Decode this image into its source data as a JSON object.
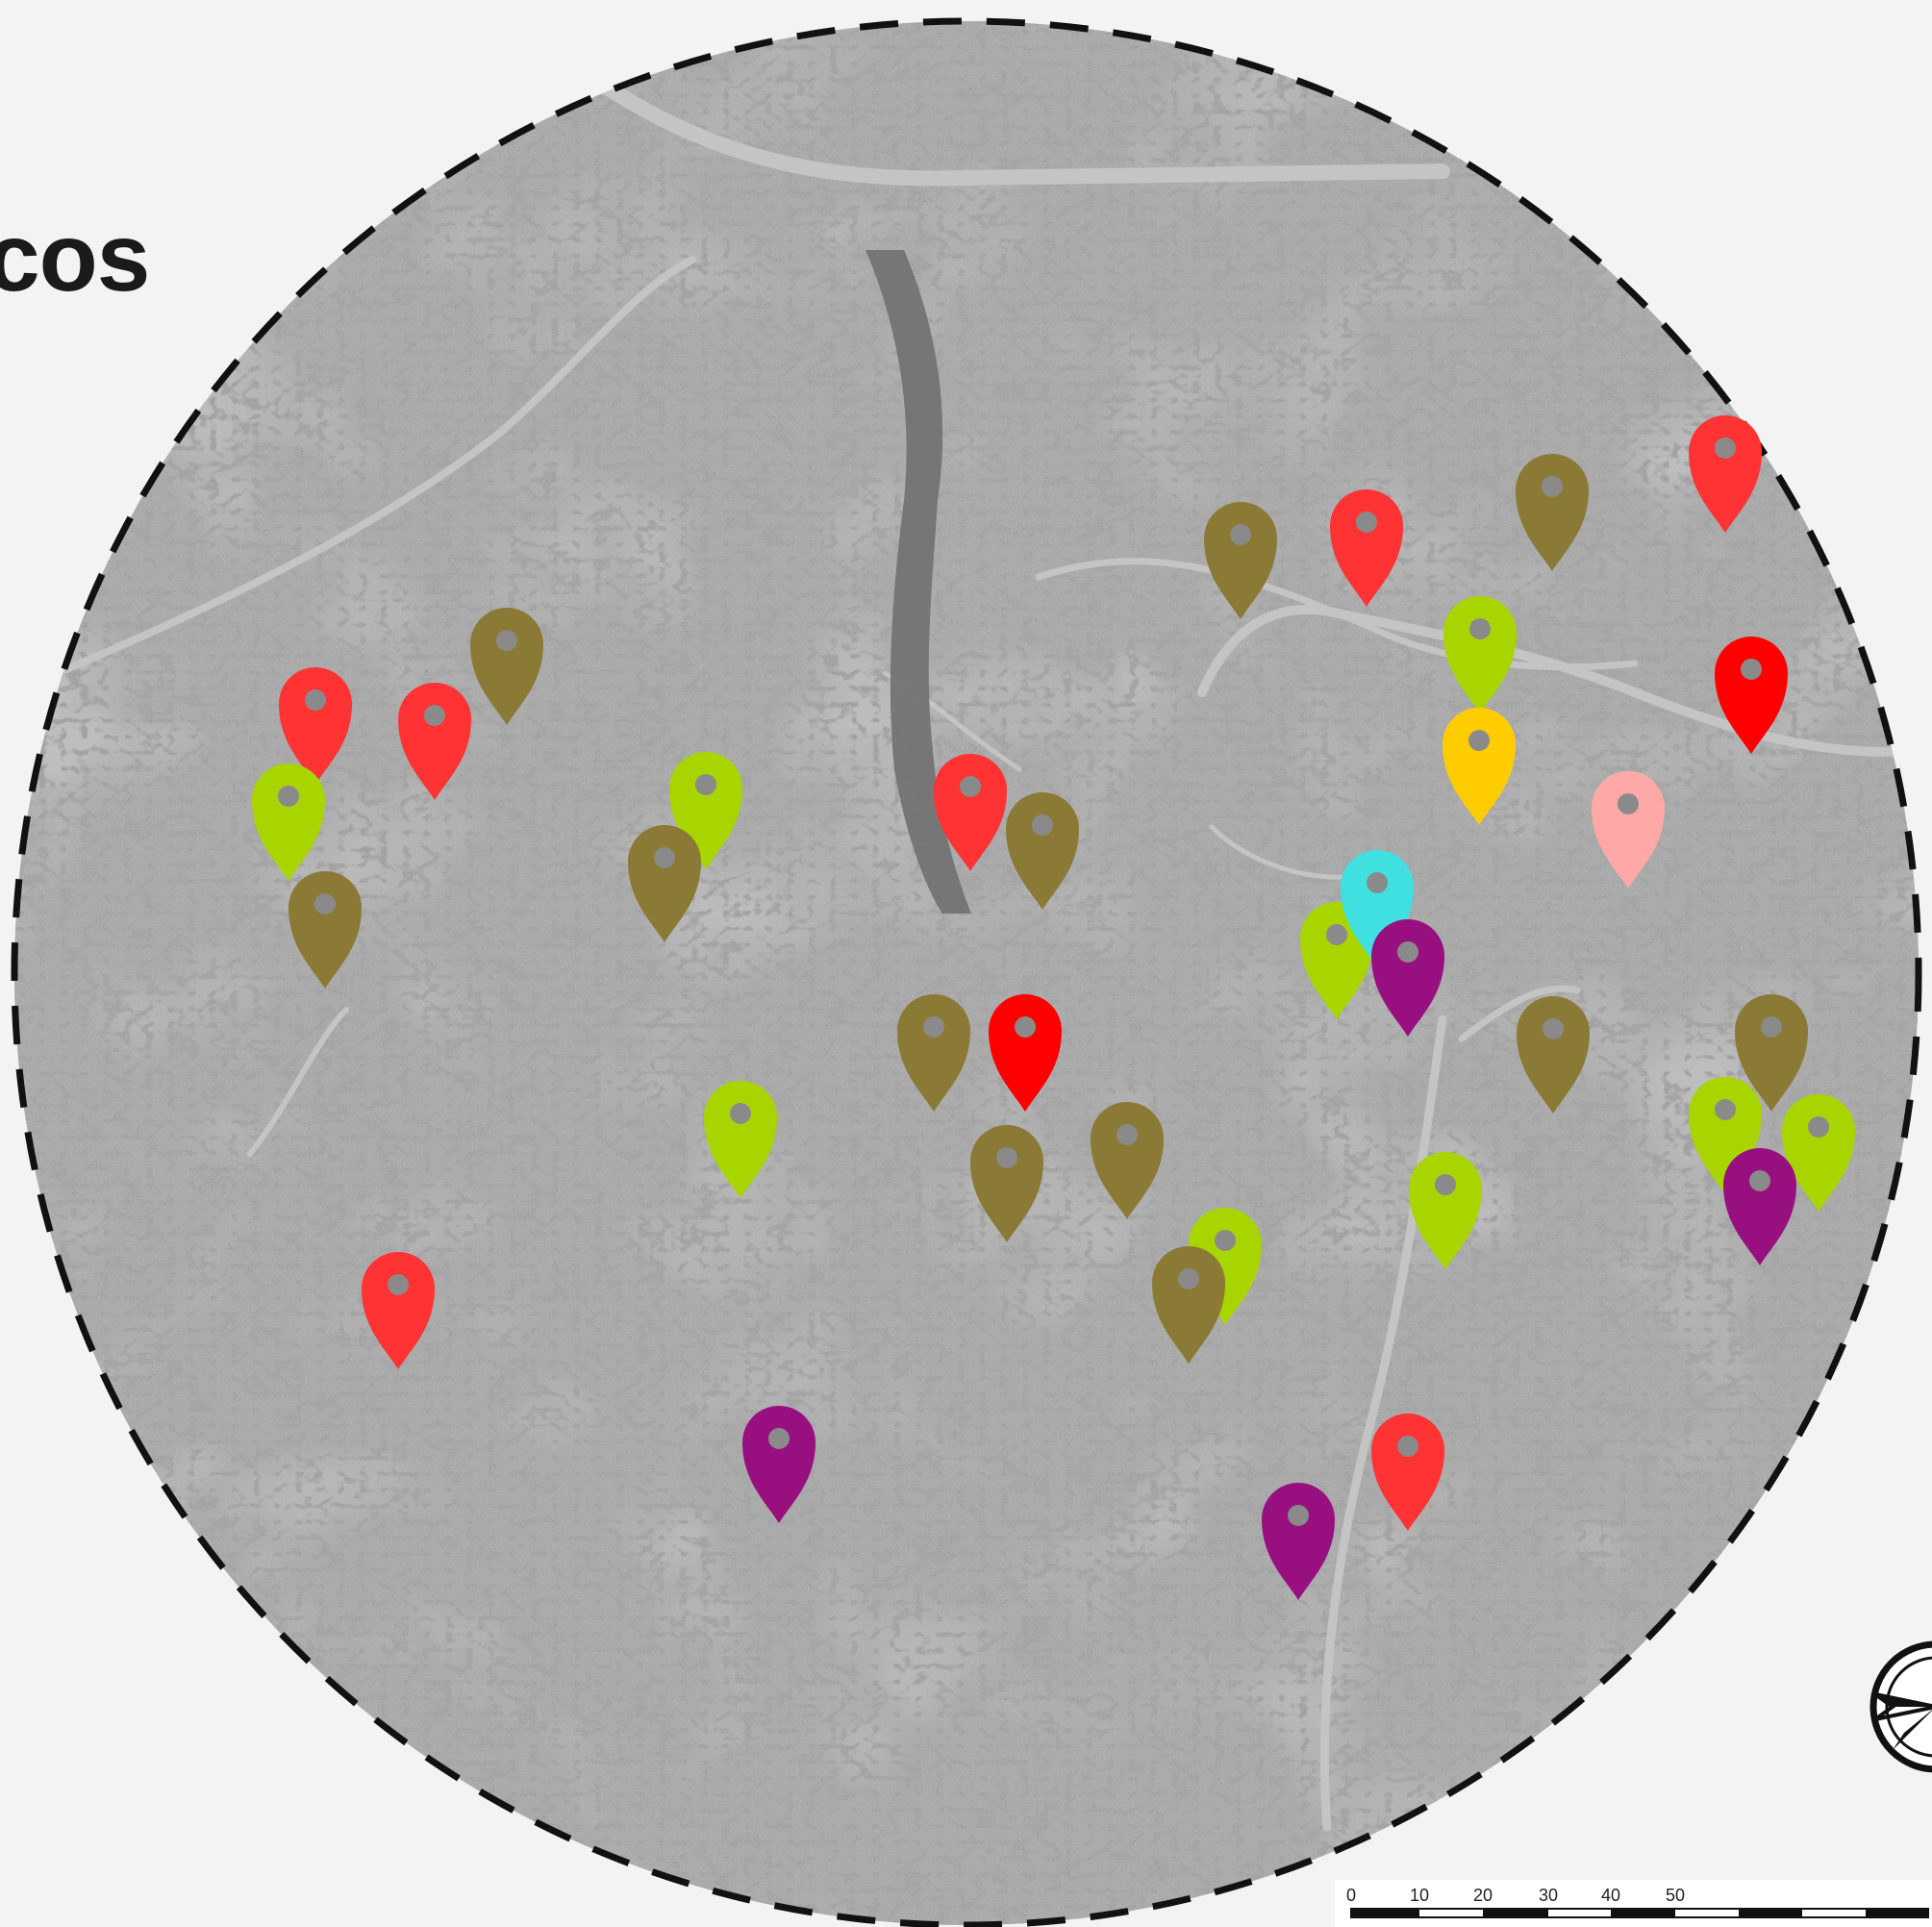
{
  "title": "cos",
  "colors": {
    "background": "#f3f3f3",
    "map_base": "#8e8e8e",
    "circle_border": "#111111"
  },
  "markers": [
    {
      "category": "red",
      "color": "#ff3333",
      "icon": "map-pin-icon"
    },
    {
      "category": "red",
      "color": "#ff3333",
      "icon": "map-pin-icon"
    },
    {
      "category": "olive",
      "color": "#8a7a35",
      "icon": "map-pin-icon"
    },
    {
      "category": "red",
      "color": "#ff3333",
      "icon": "map-pin-icon"
    },
    {
      "category": "lime",
      "color": "#a8d400",
      "icon": "map-pin-icon"
    },
    {
      "category": "olive",
      "color": "#8a7a35",
      "icon": "map-pin-icon"
    },
    {
      "category": "lime",
      "color": "#a8d400",
      "icon": "map-pin-icon"
    },
    {
      "category": "olive",
      "color": "#8a7a35",
      "icon": "map-pin-icon"
    },
    {
      "category": "red",
      "color": "#ff3333",
      "icon": "map-pin-icon"
    },
    {
      "category": "olive",
      "color": "#8a7a35",
      "icon": "map-pin-icon"
    },
    {
      "category": "olive",
      "color": "#8a7a35",
      "icon": "map-pin-icon"
    },
    {
      "category": "olive",
      "color": "#8a7a35",
      "icon": "map-pin-icon"
    },
    {
      "category": "red",
      "color": "#ff3333",
      "icon": "map-pin-icon"
    },
    {
      "category": "lime",
      "color": "#a8d400",
      "icon": "map-pin-icon"
    },
    {
      "category": "yellow",
      "color": "#ffcc00",
      "icon": "map-pin-icon"
    },
    {
      "category": "red",
      "color": "#ff0000",
      "icon": "map-pin-icon"
    },
    {
      "category": "pink",
      "color": "#ffa8a8",
      "icon": "map-pin-icon"
    },
    {
      "category": "lime",
      "color": "#a8d400",
      "icon": "map-pin-icon"
    },
    {
      "category": "cyan",
      "color": "#40e0e0",
      "icon": "map-pin-icon"
    },
    {
      "category": "purple",
      "color": "#981080",
      "icon": "map-pin-icon"
    },
    {
      "category": "olive",
      "color": "#8a7a35",
      "icon": "map-pin-icon"
    },
    {
      "category": "olive",
      "color": "#8a7a35",
      "icon": "map-pin-icon"
    },
    {
      "category": "red",
      "color": "#ff0000",
      "icon": "map-pin-icon"
    },
    {
      "category": "lime",
      "color": "#a8d400",
      "icon": "map-pin-icon"
    },
    {
      "category": "olive",
      "color": "#8a7a35",
      "icon": "map-pin-icon"
    },
    {
      "category": "olive",
      "color": "#8a7a35",
      "icon": "map-pin-icon"
    },
    {
      "category": "olive",
      "color": "#8a7a35",
      "icon": "map-pin-icon"
    },
    {
      "category": "lime",
      "color": "#a8d400",
      "icon": "map-pin-icon"
    },
    {
      "category": "lime",
      "color": "#a8d400",
      "icon": "map-pin-icon"
    },
    {
      "category": "purple",
      "color": "#981080",
      "icon": "map-pin-icon"
    },
    {
      "category": "lime",
      "color": "#a8d400",
      "icon": "map-pin-icon"
    },
    {
      "category": "lime",
      "color": "#a8d400",
      "icon": "map-pin-icon"
    },
    {
      "category": "olive",
      "color": "#8a7a35",
      "icon": "map-pin-icon"
    },
    {
      "category": "red",
      "color": "#ff3333",
      "icon": "map-pin-icon"
    },
    {
      "category": "purple",
      "color": "#981080",
      "icon": "map-pin-icon"
    },
    {
      "category": "red",
      "color": "#ff3333",
      "icon": "map-pin-icon"
    },
    {
      "category": "purple",
      "color": "#981080",
      "icon": "map-pin-icon"
    }
  ],
  "scale_bar": {
    "ticks": [
      "0",
      "10",
      "20",
      "30",
      "40",
      "50"
    ]
  },
  "compass": {
    "icon": "north-arrow-icon"
  }
}
